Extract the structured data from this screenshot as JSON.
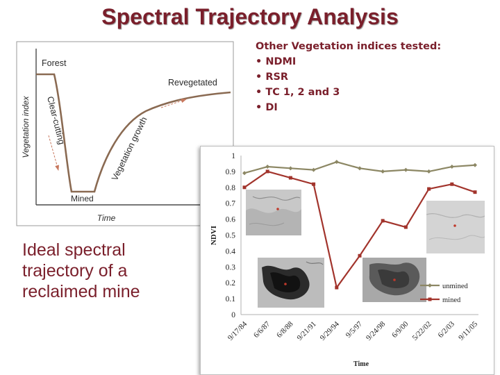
{
  "slide": {
    "title": "Spectral Trajectory Analysis",
    "caption_lines": [
      "Ideal spectral",
      "trajectory of a",
      "reclaimed mine"
    ],
    "indices_heading": "Other Vegetation indices tested:",
    "indices": [
      "• NDMI",
      "• RSR",
      "• TC 1, 2 and 3",
      "• DI"
    ]
  },
  "chart_data": [
    {
      "type": "line",
      "title": "",
      "xlabel": "Time",
      "ylabel": "Vegetation index",
      "labels": {
        "forest": "Forest",
        "clear_cutting": "Clear-cutting",
        "mined": "Mined",
        "vegetation_growth": "Vegetation growth",
        "revegetated": "Revegetated"
      },
      "grid": false
    },
    {
      "type": "line",
      "title": "",
      "xlabel": "Time",
      "ylabel": "NDVI",
      "ylim": [
        0,
        1
      ],
      "yticks": [
        "0",
        "0.1",
        "0.2",
        "0.3",
        "0.4",
        "0.5",
        "0.6",
        "0.7",
        "0.8",
        "0.9",
        "1"
      ],
      "categories": [
        "9/17/84",
        "6/6/87",
        "6/8/88",
        "9/21/91",
        "9/29/94",
        "9/5/97",
        "9/24/98",
        "6/9/00",
        "5/22/02",
        "6/2/03",
        "9/11/05"
      ],
      "series": [
        {
          "name": "unmined",
          "color": "#8c8764",
          "values": [
            0.89,
            0.93,
            0.92,
            0.91,
            0.96,
            0.92,
            0.9,
            0.91,
            0.9,
            0.93,
            0.94
          ]
        },
        {
          "name": "mined",
          "color": "#a2342c",
          "values": [
            0.8,
            0.9,
            0.86,
            0.82,
            0.17,
            0.37,
            0.59,
            0.55,
            0.79,
            0.82,
            0.77
          ]
        }
      ],
      "legend": "bottom-right",
      "grid": false
    }
  ]
}
